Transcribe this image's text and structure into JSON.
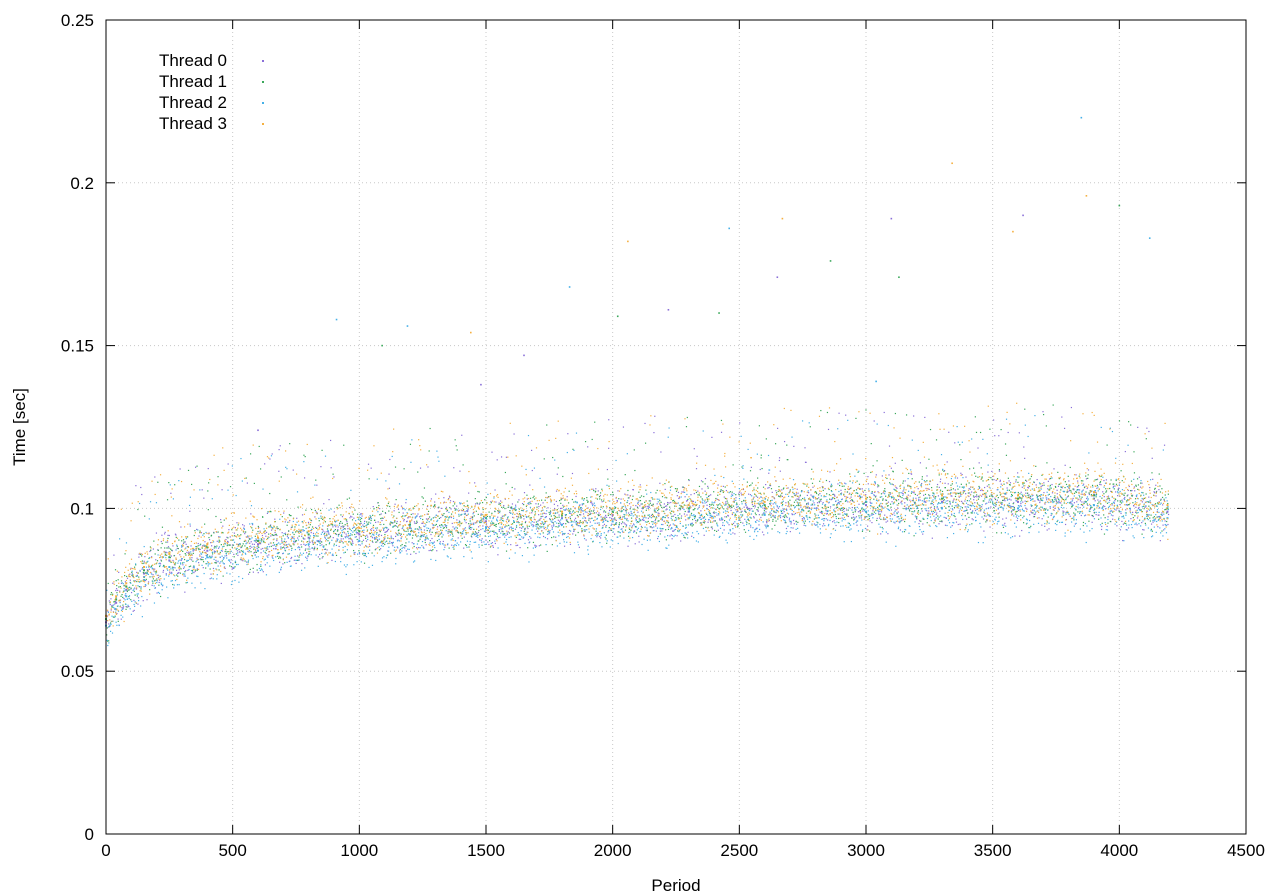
{
  "chart_data": {
    "type": "scatter",
    "title": "",
    "xlabel": "Period",
    "ylabel": "Time [sec]",
    "xlim": [
      0,
      4500
    ],
    "ylim": [
      0,
      0.25
    ],
    "x_ticks": [
      0,
      500,
      1000,
      1500,
      2000,
      2500,
      3000,
      3500,
      4000,
      4500
    ],
    "x_tick_labels": [
      "0",
      "500",
      "1000",
      "1500",
      "2000",
      "2500",
      "3000",
      "3500",
      "4000",
      "4500"
    ],
    "y_ticks": [
      0,
      0.05,
      0.1,
      0.15,
      0.2,
      0.25
    ],
    "y_tick_labels": [
      "0",
      "0.05",
      "0.1",
      "0.15",
      "0.2",
      "0.25"
    ],
    "grid": true,
    "legend_position": "top-left",
    "series": [
      {
        "name": "Thread 0",
        "color": "#8a6fd8",
        "points": [
          [
            0,
            0.065
          ],
          [
            40,
            0.071
          ],
          [
            80,
            0.075
          ],
          [
            150,
            0.08
          ],
          [
            250,
            0.084
          ],
          [
            400,
            0.087
          ],
          [
            600,
            0.089
          ],
          [
            800,
            0.091
          ],
          [
            1000,
            0.092
          ],
          [
            1200,
            0.094
          ],
          [
            1500,
            0.096
          ],
          [
            1800,
            0.097
          ],
          [
            2000,
            0.098
          ],
          [
            2300,
            0.099
          ],
          [
            2600,
            0.1
          ],
          [
            3000,
            0.101
          ],
          [
            3300,
            0.102
          ],
          [
            3600,
            0.102
          ],
          [
            3900,
            0.103
          ],
          [
            4190,
            0.099
          ]
        ],
        "outliers": [
          [
            600,
            0.124
          ],
          [
            1480,
            0.138
          ],
          [
            1650,
            0.147
          ],
          [
            2220,
            0.161
          ],
          [
            2650,
            0.171
          ],
          [
            3100,
            0.189
          ],
          [
            3620,
            0.19
          ]
        ]
      },
      {
        "name": "Thread 1",
        "color": "#3aa85a",
        "points": [
          [
            0,
            0.066
          ],
          [
            40,
            0.072
          ],
          [
            80,
            0.076
          ],
          [
            150,
            0.081
          ],
          [
            250,
            0.085
          ],
          [
            400,
            0.088
          ],
          [
            600,
            0.09
          ],
          [
            800,
            0.092
          ],
          [
            1000,
            0.093
          ],
          [
            1200,
            0.095
          ],
          [
            1500,
            0.097
          ],
          [
            1800,
            0.098
          ],
          [
            2000,
            0.099
          ],
          [
            2300,
            0.1
          ],
          [
            2600,
            0.101
          ],
          [
            3000,
            0.102
          ],
          [
            3300,
            0.103
          ],
          [
            3600,
            0.103
          ],
          [
            3900,
            0.104
          ],
          [
            4190,
            0.1
          ]
        ],
        "outliers": [
          [
            1090,
            0.15
          ],
          [
            2020,
            0.159
          ],
          [
            2420,
            0.16
          ],
          [
            2860,
            0.176
          ],
          [
            3130,
            0.171
          ],
          [
            4000,
            0.193
          ]
        ]
      },
      {
        "name": "Thread 2",
        "color": "#45b0e8",
        "points": [
          [
            0,
            0.064
          ],
          [
            40,
            0.069
          ],
          [
            80,
            0.073
          ],
          [
            150,
            0.078
          ],
          [
            250,
            0.082
          ],
          [
            400,
            0.085
          ],
          [
            600,
            0.087
          ],
          [
            800,
            0.089
          ],
          [
            1000,
            0.09
          ],
          [
            1200,
            0.092
          ],
          [
            1500,
            0.094
          ],
          [
            1800,
            0.095
          ],
          [
            2000,
            0.096
          ],
          [
            2300,
            0.097
          ],
          [
            2600,
            0.098
          ],
          [
            3000,
            0.099
          ],
          [
            3300,
            0.1
          ],
          [
            3600,
            0.1
          ],
          [
            3900,
            0.101
          ],
          [
            4190,
            0.097
          ]
        ],
        "outliers": [
          [
            910,
            0.158
          ],
          [
            1190,
            0.156
          ],
          [
            1830,
            0.168
          ],
          [
            2460,
            0.186
          ],
          [
            3040,
            0.139
          ],
          [
            3850,
            0.22
          ],
          [
            4120,
            0.183
          ]
        ]
      },
      {
        "name": "Thread 3",
        "color": "#f5b041",
        "points": [
          [
            0,
            0.067
          ],
          [
            40,
            0.073
          ],
          [
            80,
            0.077
          ],
          [
            150,
            0.082
          ],
          [
            250,
            0.086
          ],
          [
            400,
            0.089
          ],
          [
            600,
            0.091
          ],
          [
            800,
            0.093
          ],
          [
            1000,
            0.094
          ],
          [
            1200,
            0.096
          ],
          [
            1500,
            0.098
          ],
          [
            1800,
            0.099
          ],
          [
            2000,
            0.1
          ],
          [
            2300,
            0.101
          ],
          [
            2600,
            0.102
          ],
          [
            3000,
            0.103
          ],
          [
            3300,
            0.104
          ],
          [
            3600,
            0.104
          ],
          [
            3900,
            0.105
          ],
          [
            4190,
            0.101
          ]
        ],
        "outliers": [
          [
            1440,
            0.154
          ],
          [
            2060,
            0.182
          ],
          [
            2670,
            0.189
          ],
          [
            3340,
            0.206
          ],
          [
            3580,
            0.185
          ],
          [
            3870,
            0.196
          ]
        ]
      }
    ]
  }
}
